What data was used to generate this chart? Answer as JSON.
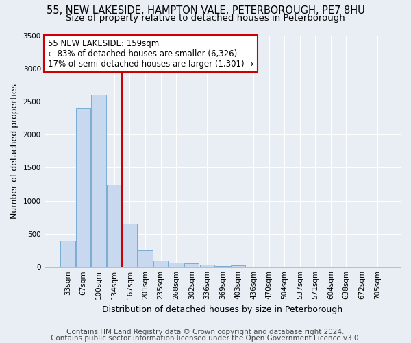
{
  "title_line1": "55, NEW LAKESIDE, HAMPTON VALE, PETERBOROUGH, PE7 8HU",
  "title_line2": "Size of property relative to detached houses in Peterborough",
  "xlabel": "Distribution of detached houses by size in Peterborough",
  "ylabel": "Number of detached properties",
  "categories": [
    "33sqm",
    "67sqm",
    "100sqm",
    "134sqm",
    "167sqm",
    "201sqm",
    "235sqm",
    "268sqm",
    "302sqm",
    "336sqm",
    "369sqm",
    "403sqm",
    "436sqm",
    "470sqm",
    "504sqm",
    "537sqm",
    "571sqm",
    "604sqm",
    "638sqm",
    "672sqm",
    "705sqm"
  ],
  "values": [
    400,
    2400,
    2600,
    1250,
    650,
    250,
    100,
    60,
    50,
    30,
    10,
    20,
    0,
    0,
    0,
    0,
    0,
    0,
    0,
    0,
    0
  ],
  "bar_color": "#c8d9ef",
  "bar_edge_color": "#7aadd4",
  "vline_color": "#cc0000",
  "vline_pos": 3.5,
  "annotation_text": "55 NEW LAKESIDE: 159sqm\n← 83% of detached houses are smaller (6,326)\n17% of semi-detached houses are larger (1,301) →",
  "annotation_box_color": "#ffffff",
  "annotation_edge_color": "#cc0000",
  "ylim": [
    0,
    3500
  ],
  "yticks": [
    0,
    500,
    1000,
    1500,
    2000,
    2500,
    3000,
    3500
  ],
  "footer_line1": "Contains HM Land Registry data © Crown copyright and database right 2024.",
  "footer_line2": "Contains public sector information licensed under the Open Government Licence v3.0.",
  "background_color": "#e8eef4",
  "plot_bg_color": "#e8eef4",
  "grid_color": "#ffffff",
  "title_fontsize": 10.5,
  "subtitle_fontsize": 9.5,
  "axis_label_fontsize": 9,
  "tick_fontsize": 7.5,
  "annotation_fontsize": 8.5,
  "footer_fontsize": 7.5
}
